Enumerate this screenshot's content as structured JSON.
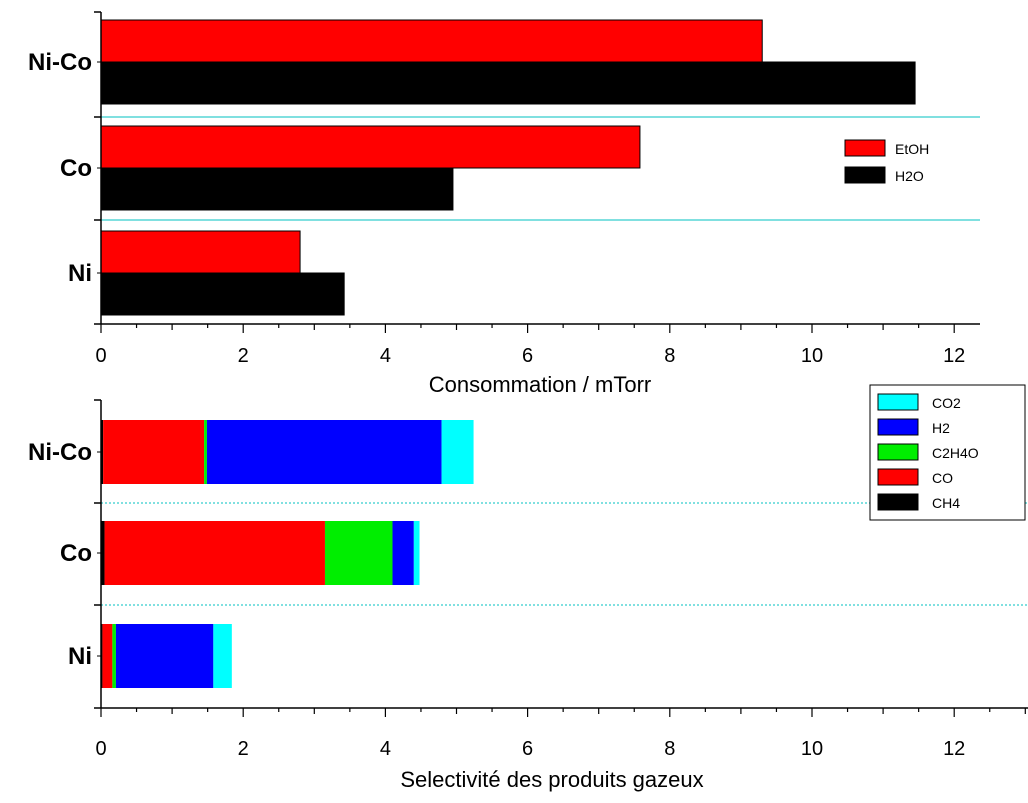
{
  "chart_data": [
    {
      "type": "bar",
      "orientation": "horizontal",
      "categories": [
        "Ni-Co",
        "Co",
        "Ni"
      ],
      "series": [
        {
          "name": "EtOH",
          "color": "#ff0000",
          "values": [
            9.3,
            7.58,
            2.8
          ]
        },
        {
          "name": "H2O",
          "color": "#000000",
          "values": [
            11.45,
            4.95,
            3.42
          ]
        }
      ],
      "xlabel": "Consommation / mTorr",
      "ylabel": "",
      "xlim": [
        0,
        12.4
      ],
      "xticks": [
        "0",
        "2",
        "4",
        "6",
        "8",
        "10",
        "12"
      ],
      "legend": "right",
      "separator_color": "#00c0c0"
    },
    {
      "type": "bar",
      "orientation": "horizontal",
      "stacked": true,
      "categories": [
        "Ni-Co",
        "Co",
        "Ni"
      ],
      "series": [
        {
          "name": "CH4",
          "color": "#000000",
          "values": [
            0.03,
            0.05,
            0.02
          ]
        },
        {
          "name": "CO",
          "color": "#ff0000",
          "values": [
            1.42,
            3.1,
            0.14
          ]
        },
        {
          "name": "C2H4O",
          "color": "#00ee00",
          "values": [
            0.04,
            0.95,
            0.05
          ]
        },
        {
          "name": "H2",
          "color": "#0000ff",
          "values": [
            3.3,
            0.3,
            1.37
          ]
        },
        {
          "name": "CO2",
          "color": "#00ffff",
          "values": [
            0.45,
            0.08,
            0.26
          ]
        }
      ],
      "legend_order": [
        "CO2",
        "H2",
        "C2H4O",
        "CO",
        "CH4"
      ],
      "xlabel": "Selectivité des produits gazeux",
      "ylabel": "",
      "xlim": [
        0,
        13
      ],
      "xticks": [
        "0",
        "2",
        "4",
        "6",
        "8",
        "10",
        "12"
      ],
      "legend": "top-right",
      "separator_color": "#00c0c0"
    }
  ]
}
